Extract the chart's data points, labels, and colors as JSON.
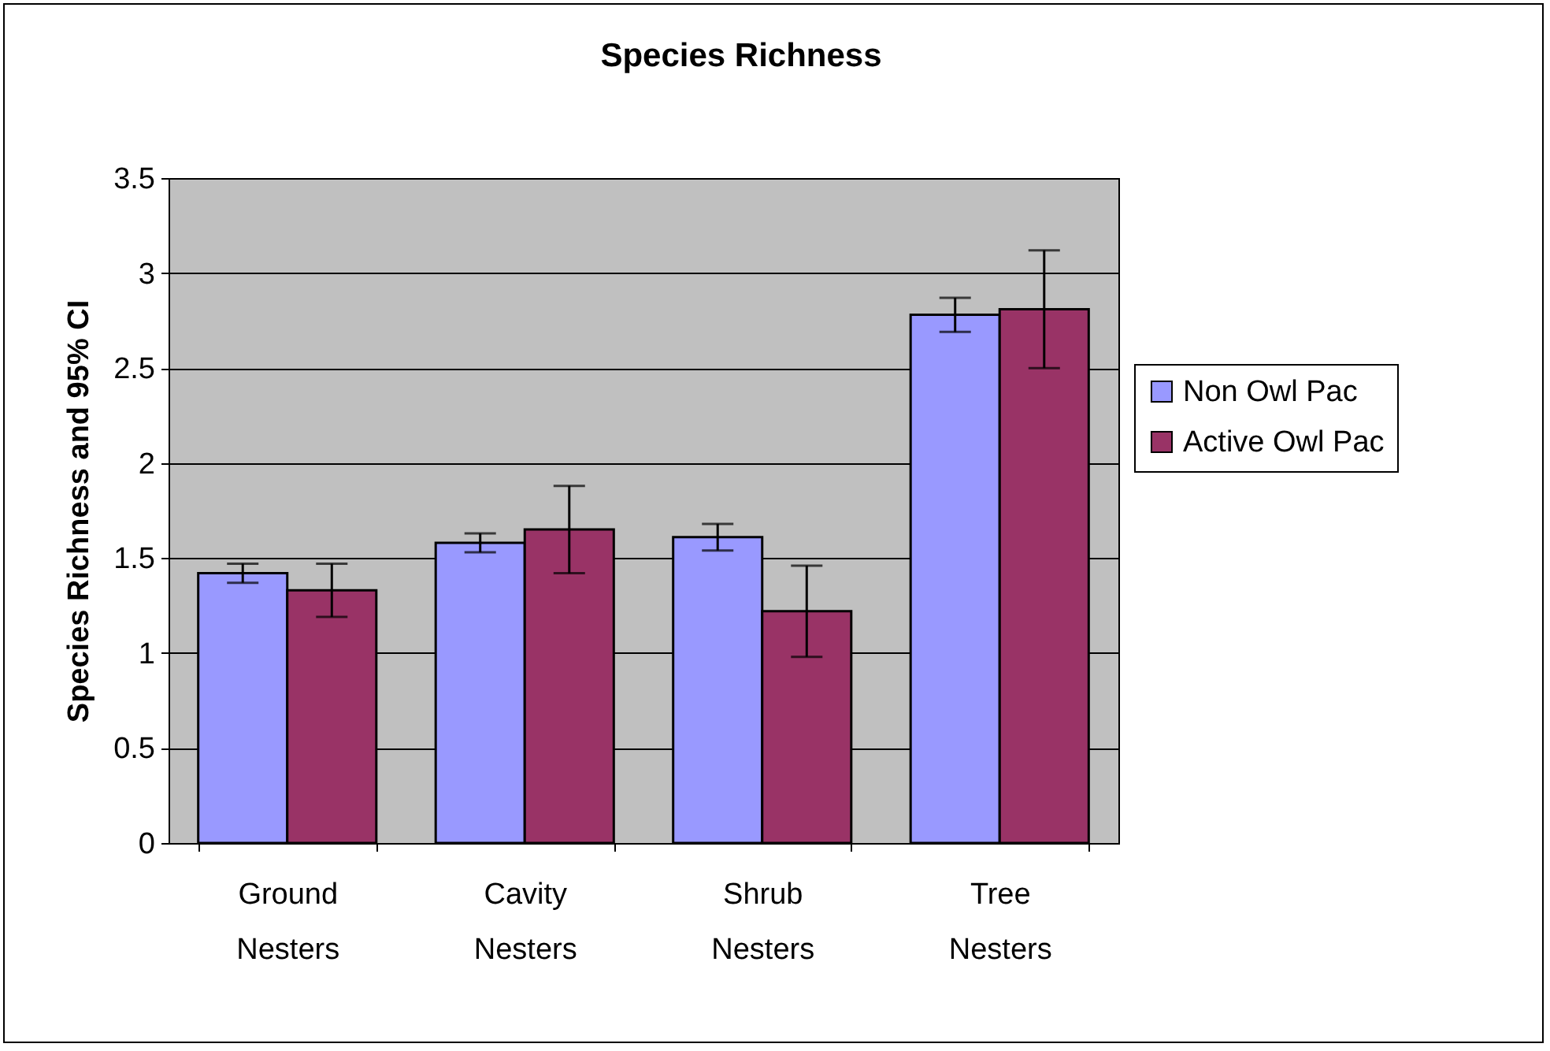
{
  "chart_data": {
    "type": "bar",
    "title": "Species Richness",
    "ylabel": "Species Richness and 95% CI",
    "categories": [
      "Ground Nesters",
      "Cavity Nesters",
      "Shrub Nesters",
      "Tree Nesters"
    ],
    "series": [
      {
        "name": "Non Owl Pac",
        "color": "#9999ff",
        "values": [
          1.42,
          1.58,
          1.61,
          2.78
        ],
        "errors": [
          0.05,
          0.05,
          0.07,
          0.09
        ]
      },
      {
        "name": "Active Owl Pac",
        "color": "#993366",
        "values": [
          1.33,
          1.65,
          1.22,
          2.81
        ],
        "errors": [
          0.14,
          0.23,
          0.24,
          0.31
        ]
      }
    ],
    "ylim": [
      0,
      3.5
    ],
    "yticks": [
      0,
      0.5,
      1,
      1.5,
      2,
      2.5,
      3,
      3.5
    ],
    "grid": "y",
    "legend": "right"
  }
}
